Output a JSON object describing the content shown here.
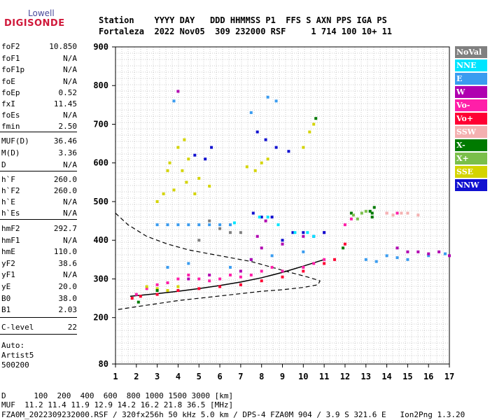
{
  "logo": {
    "top": "Lowell",
    "bottom": "DIGISONDE"
  },
  "header": {
    "line1": "Station    YYYY DAY   DDD HHMMSS P1  FFS S AXN PPS IGA PS",
    "line2": "Fortaleza  2022 Nov05  309 232000 RSF     1 714 100 10+ 11"
  },
  "params": [
    {
      "name": "foF2",
      "value": "10.850"
    },
    {
      "name": "foF1",
      "value": "N/A"
    },
    {
      "name": "foF1p",
      "value": "N/A"
    },
    {
      "name": "foE",
      "value": "N/A"
    },
    {
      "name": "foEp",
      "value": "0.52"
    },
    {
      "name": "fxI",
      "value": "11.45"
    },
    {
      "name": "foEs",
      "value": "N/A"
    },
    {
      "name": "fmin",
      "value": "2.50"
    },
    {
      "name": "MUF(D)",
      "value": "36.46"
    },
    {
      "name": "M(D)",
      "value": "3.36"
    },
    {
      "name": "D",
      "value": "N/A"
    },
    {
      "name": "h`F",
      "value": "260.0"
    },
    {
      "name": "h`F2",
      "value": "260.0"
    },
    {
      "name": "h`E",
      "value": "N/A"
    },
    {
      "name": "h`Es",
      "value": "N/A"
    },
    {
      "name": "hmF2",
      "value": "292.7"
    },
    {
      "name": "hmF1",
      "value": "N/A"
    },
    {
      "name": "hmE",
      "value": "110.0"
    },
    {
      "name": "yF2",
      "value": "38.6"
    },
    {
      "name": "yF1",
      "value": "N/A"
    },
    {
      "name": "yE",
      "value": "20.0"
    },
    {
      "name": "B0",
      "value": "38.0"
    },
    {
      "name": "B1",
      "value": "2.03"
    },
    {
      "name": "C-level",
      "value": "22"
    }
  ],
  "autoscaling": {
    "line1": "Auto:",
    "line2": "Artist5",
    "line3": "500200"
  },
  "legend": [
    {
      "label": "NoVal",
      "color": "#808080"
    },
    {
      "label": "NNE",
      "color": "#00e5ff"
    },
    {
      "label": "E",
      "color": "#3a9cf0"
    },
    {
      "label": "W",
      "color": "#b000b0"
    },
    {
      "label": "Vo-",
      "color": "#ff1fa8"
    },
    {
      "label": "Vo+",
      "color": "#ff0033"
    },
    {
      "label": "SSW",
      "color": "#f4b0b0"
    },
    {
      "label": "X-",
      "color": "#007a00"
    },
    {
      "label": "X+",
      "color": "#7abf4a"
    },
    {
      "label": "SSE",
      "color": "#d4d400"
    },
    {
      "label": "NNW",
      "color": "#1010d0"
    }
  ],
  "bottom": {
    "line1": "D      100  200  400  600  800 1000 1500 3000 [km]",
    "line2": "MUF  11.2 11.4 11.9 12.9 14.2 16.2 21.8 36.5 [MHz]",
    "line3": "FZA0M_2022309232000.RSF / 320fx256h 50 kHz 5.0 km / DPS-4 FZA0M 904 / 3.9 S 321.6 E   Ion2Png 1.3.20"
  },
  "chart_data": {
    "type": "scatter",
    "xlim": [
      1,
      17
    ],
    "ylim": [
      80,
      900
    ],
    "xticks": [
      1,
      2,
      3,
      4,
      5,
      6,
      7,
      8,
      9,
      10,
      11,
      12,
      13,
      14,
      15,
      16,
      17
    ],
    "yticks": [
      80,
      200,
      300,
      400,
      500,
      600,
      700,
      800,
      900
    ],
    "grid": true,
    "series": [
      {
        "name": "Vo-",
        "color": "#ff1fa8",
        "points": [
          [
            2.0,
            260
          ],
          [
            2.5,
            275
          ],
          [
            3.0,
            285
          ],
          [
            3.5,
            290
          ],
          [
            4.0,
            300
          ],
          [
            4.5,
            310
          ],
          [
            5.0,
            300
          ],
          [
            5.5,
            295
          ],
          [
            6.0,
            300
          ],
          [
            6.5,
            310
          ],
          [
            7.0,
            305
          ],
          [
            7.5,
            310
          ],
          [
            8.0,
            320
          ],
          [
            8.5,
            330
          ],
          [
            9.0,
            320
          ],
          [
            10.0,
            330
          ],
          [
            10.5,
            340
          ],
          [
            11.0,
            350
          ],
          [
            12.0,
            440
          ],
          [
            12.3,
            455
          ],
          [
            14.0,
            470
          ],
          [
            14.5,
            470
          ]
        ]
      },
      {
        "name": "Vo+",
        "color": "#ff0033",
        "points": [
          [
            1.8,
            250
          ],
          [
            2.2,
            255
          ],
          [
            3.0,
            260
          ],
          [
            4.0,
            270
          ],
          [
            5.0,
            275
          ],
          [
            6.0,
            280
          ],
          [
            7.0,
            285
          ],
          [
            8.0,
            295
          ],
          [
            9.0,
            305
          ],
          [
            10.0,
            320
          ],
          [
            11.0,
            340
          ],
          [
            11.5,
            350
          ],
          [
            12.0,
            390
          ]
        ]
      },
      {
        "name": "E",
        "color": "#3a9cf0",
        "points": [
          [
            3.0,
            440
          ],
          [
            3.5,
            440
          ],
          [
            4.0,
            440
          ],
          [
            4.5,
            440
          ],
          [
            5.0,
            440
          ],
          [
            5.5,
            440
          ],
          [
            6.0,
            440
          ],
          [
            6.5,
            440
          ],
          [
            3.5,
            330
          ],
          [
            4.5,
            340
          ],
          [
            6.5,
            330
          ],
          [
            7.5,
            350
          ],
          [
            8.5,
            360
          ],
          [
            10.0,
            370
          ],
          [
            13.0,
            350
          ],
          [
            13.5,
            345
          ],
          [
            14.0,
            360
          ],
          [
            14.5,
            355
          ],
          [
            15.0,
            350
          ],
          [
            16.0,
            360
          ],
          [
            16.8,
            365
          ],
          [
            3.8,
            760
          ],
          [
            7.5,
            730
          ],
          [
            8.3,
            770
          ],
          [
            8.7,
            760
          ]
        ]
      },
      {
        "name": "W",
        "color": "#b000b0",
        "points": [
          [
            4.5,
            300
          ],
          [
            5.5,
            310
          ],
          [
            7.0,
            320
          ],
          [
            7.5,
            350
          ],
          [
            8.0,
            380
          ],
          [
            9.0,
            390
          ],
          [
            10.0,
            410
          ],
          [
            11.0,
            420
          ],
          [
            14.5,
            380
          ],
          [
            15.0,
            370
          ],
          [
            15.5,
            370
          ],
          [
            16.0,
            365
          ],
          [
            16.5,
            370
          ],
          [
            17.0,
            360
          ],
          [
            4.0,
            785
          ],
          [
            7.8,
            410
          ],
          [
            8.2,
            450
          ]
        ]
      },
      {
        "name": "NNW",
        "color": "#1010d0",
        "points": [
          [
            7.6,
            470
          ],
          [
            8.0,
            460
          ],
          [
            8.5,
            460
          ],
          [
            9.0,
            400
          ],
          [
            9.5,
            420
          ],
          [
            10.0,
            420
          ],
          [
            10.5,
            410
          ],
          [
            11.0,
            420
          ],
          [
            7.8,
            680
          ],
          [
            8.2,
            660
          ],
          [
            8.7,
            640
          ],
          [
            9.3,
            630
          ],
          [
            4.8,
            620
          ],
          [
            5.3,
            610
          ],
          [
            5.6,
            640
          ]
        ]
      },
      {
        "name": "SSE",
        "color": "#d4d400",
        "points": [
          [
            3.0,
            500
          ],
          [
            3.3,
            520
          ],
          [
            3.6,
            600
          ],
          [
            4.0,
            640
          ],
          [
            4.3,
            660
          ],
          [
            3.8,
            530
          ],
          [
            4.4,
            550
          ],
          [
            4.8,
            520
          ],
          [
            5.0,
            560
          ],
          [
            5.5,
            540
          ],
          [
            3.5,
            580
          ],
          [
            4.2,
            580
          ],
          [
            4.5,
            610
          ],
          [
            10.0,
            640
          ],
          [
            10.3,
            680
          ],
          [
            10.5,
            700
          ],
          [
            2.5,
            280
          ],
          [
            3.0,
            275
          ],
          [
            3.5,
            270
          ],
          [
            4.0,
            280
          ],
          [
            8.0,
            600
          ],
          [
            8.3,
            610
          ],
          [
            7.3,
            590
          ],
          [
            7.7,
            580
          ]
        ]
      },
      {
        "name": "X-",
        "color": "#007a00",
        "points": [
          [
            10.6,
            715
          ],
          [
            13.3,
            470
          ],
          [
            13.4,
            485
          ],
          [
            13.2,
            475
          ],
          [
            13.3,
            460
          ],
          [
            2.1,
            240
          ],
          [
            3.0,
            270
          ],
          [
            12.3,
            470
          ],
          [
            11.9,
            380
          ]
        ]
      },
      {
        "name": "X+",
        "color": "#7abf4a",
        "points": [
          [
            12.4,
            465
          ],
          [
            12.8,
            470
          ],
          [
            13.0,
            475
          ],
          [
            12.6,
            455
          ]
        ]
      },
      {
        "name": "SSW",
        "color": "#f4b0b0",
        "points": [
          [
            14.0,
            470
          ],
          [
            14.3,
            465
          ],
          [
            14.7,
            470
          ],
          [
            15.0,
            470
          ],
          [
            15.5,
            465
          ]
        ]
      },
      {
        "name": "NNE",
        "color": "#00e5ff",
        "points": [
          [
            7.9,
            460
          ],
          [
            8.3,
            460
          ],
          [
            8.8,
            440
          ],
          [
            9.6,
            420
          ],
          [
            10.2,
            420
          ],
          [
            6.7,
            445
          ],
          [
            10.5,
            410
          ]
        ]
      },
      {
        "name": "NoVal",
        "color": "#808080",
        "points": [
          [
            5.5,
            450
          ],
          [
            6.0,
            430
          ],
          [
            6.5,
            420
          ],
          [
            7.0,
            420
          ],
          [
            5.0,
            400
          ]
        ]
      }
    ]
  }
}
